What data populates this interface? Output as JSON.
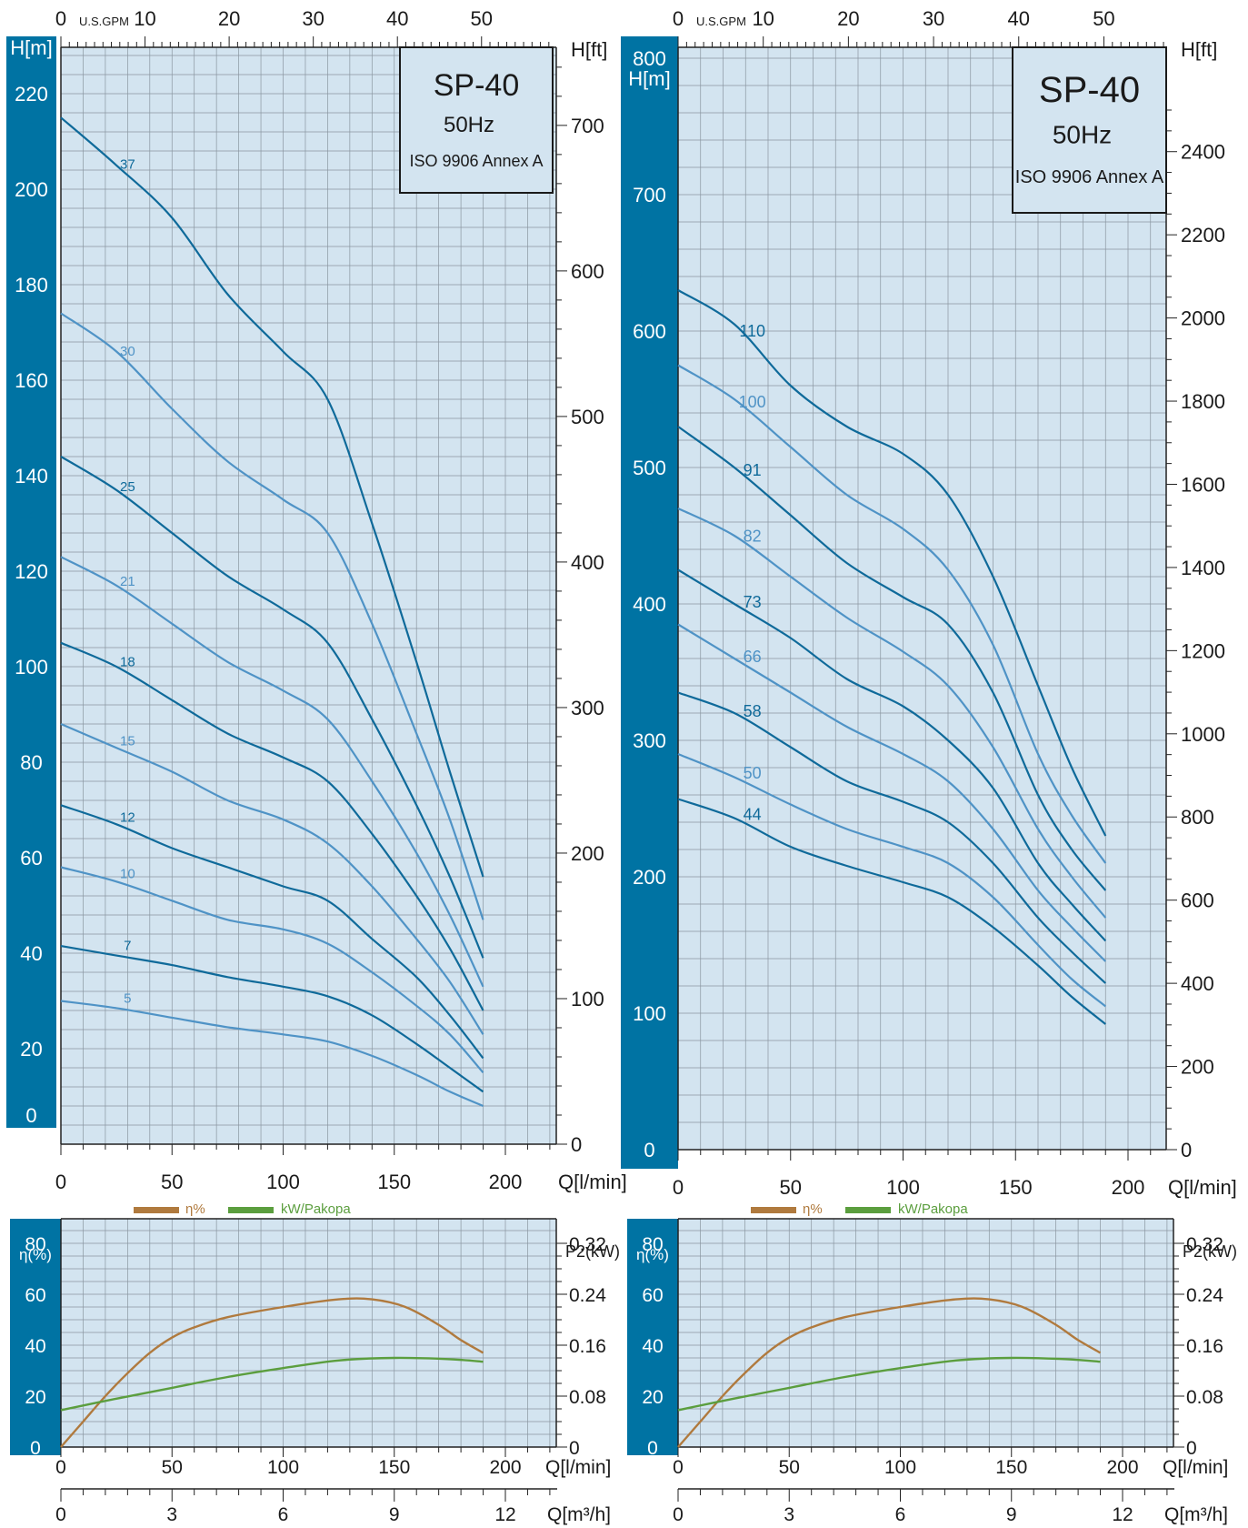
{
  "charts": [
    {
      "model": "SP-40",
      "frequency": "50Hz",
      "standard": "ISO 9906 Annex A",
      "head": {
        "gpm_unit": "U.S.GPM",
        "gpm_ticks": [
          "0",
          "10",
          "20",
          "30",
          "40",
          "50"
        ],
        "y_unit_m": "H[m]",
        "y_unit_ft": "H[ft]",
        "y_ticks_m": [
          "0",
          "20",
          "40",
          "60",
          "80",
          "100",
          "120",
          "140",
          "160",
          "180",
          "200",
          "220"
        ],
        "y_ticks_ft": [
          "0",
          "100",
          "200",
          "300",
          "400",
          "500",
          "600",
          "700"
        ],
        "x_unit": "Q[l/min]",
        "x_ticks": [
          "0",
          "50",
          "100",
          "150",
          "200"
        ]
      },
      "efficiency": {
        "legend_eta": "η%",
        "legend_kw": "kW/Pakopa",
        "y_unit_left": "η(%)",
        "y_unit_right": "P2(kW)",
        "y_ticks_left": [
          "0",
          "20",
          "40",
          "60",
          "80"
        ],
        "y_ticks_right": [
          "0",
          "0.08",
          "0.16",
          "0.24",
          "0.32"
        ],
        "x_unit": "Q[l/min]",
        "x_ticks": [
          "0",
          "50",
          "100",
          "150",
          "200"
        ],
        "x2_unit": "Q[m³/h]",
        "x2_ticks": [
          "0",
          "3",
          "6",
          "9",
          "12"
        ]
      }
    },
    {
      "model": "SP-40",
      "frequency": "50Hz",
      "standard": "ISO 9906 Annex A",
      "head": {
        "gpm_unit": "U.S.GPM",
        "gpm_ticks": [
          "0",
          "10",
          "20",
          "30",
          "40",
          "50"
        ],
        "y_unit_m": "H[m]",
        "y_unit_ft": "H[ft]",
        "y_ticks_m": [
          "0",
          "100",
          "200",
          "300",
          "400",
          "500",
          "600",
          "700",
          "800"
        ],
        "y_ticks_ft": [
          "0",
          "200",
          "400",
          "600",
          "800",
          "1000",
          "1200",
          "1400",
          "1600",
          "1800",
          "2000",
          "2200",
          "2400"
        ],
        "x_unit": "Q[l/min]",
        "x_ticks": [
          "0",
          "50",
          "100",
          "150",
          "200"
        ]
      },
      "efficiency": {
        "legend_eta": "η%",
        "legend_kw": "kW/Pakopa",
        "y_unit_left": "η(%)",
        "y_unit_right": "P2(kW)",
        "y_ticks_left": [
          "0",
          "20",
          "40",
          "60",
          "80"
        ],
        "y_ticks_right": [
          "0",
          "0.08",
          "0.16",
          "0.24",
          "0.32"
        ],
        "x_unit": "Q[l/min]",
        "x_ticks": [
          "0",
          "50",
          "100",
          "150",
          "200"
        ],
        "x2_unit": "Q[m³/h]",
        "x2_ticks": [
          "0",
          "3",
          "6",
          "9",
          "12"
        ]
      }
    }
  ],
  "colors": {
    "plot_bg": "#d3e4f0",
    "grid": "#8a96a0",
    "axis_band": "#0073a3",
    "curve_dark": "#0f6a9a",
    "curve_light": "#4f93c6",
    "eta_curve": "#b07a3e",
    "kw_curve": "#5b9e3e"
  },
  "chart_data": [
    {
      "type": "line",
      "title": "SP-40",
      "subtitle": "50Hz",
      "xlabel": "Q[l/min]",
      "ylabel": "H[m]",
      "xlim": [
        0,
        250
      ],
      "ylim": [
        0,
        230
      ],
      "x": [
        0,
        25,
        50,
        75,
        100,
        120,
        140,
        160,
        175,
        190
      ],
      "series": [
        {
          "name": "37",
          "values": [
            215,
            205,
            194,
            178,
            166,
            156,
            130,
            101,
            78,
            56
          ]
        },
        {
          "name": "30",
          "values": [
            174,
            166,
            154,
            143,
            135,
            128,
            109,
            86,
            68,
            47
          ]
        },
        {
          "name": "25",
          "values": [
            144,
            137,
            128,
            119,
            112,
            105,
            89,
            71,
            56,
            39
          ]
        },
        {
          "name": "21",
          "values": [
            123,
            117,
            109,
            101,
            95,
            89,
            76,
            61,
            48,
            33
          ]
        },
        {
          "name": "18",
          "values": [
            105,
            100,
            93,
            86,
            81,
            76,
            65,
            52,
            41,
            28
          ]
        },
        {
          "name": "15",
          "values": [
            88,
            83,
            78,
            72,
            68,
            63,
            54,
            43,
            34,
            23
          ]
        },
        {
          "name": "12",
          "values": [
            71,
            67,
            62,
            58,
            54,
            51,
            43,
            35,
            27,
            18
          ]
        },
        {
          "name": "10",
          "values": [
            58,
            55,
            51,
            47,
            45,
            42,
            36,
            29,
            23,
            15
          ]
        },
        {
          "name": "7",
          "values": [
            41.5,
            39.5,
            37.5,
            35,
            33,
            31,
            27,
            21,
            16,
            11
          ]
        },
        {
          "name": "5",
          "values": [
            30,
            28.5,
            26.5,
            24.5,
            23,
            21.5,
            18.5,
            14.5,
            11,
            8
          ]
        }
      ]
    },
    {
      "type": "line",
      "xlabel": "Q[l/min]",
      "ylabel": "η(%)",
      "xlim": [
        0,
        220
      ],
      "ylim": [
        0,
        80
      ],
      "y2lim": [
        0,
        0.32
      ],
      "x": [
        0,
        10,
        20,
        30,
        40,
        50,
        60,
        75,
        100,
        125,
        140,
        155,
        170,
        180,
        190
      ],
      "series": [
        {
          "name": "η%",
          "values": [
            0,
            10,
            20,
            29,
            37,
            43,
            47,
            51,
            55,
            58,
            58,
            55,
            48,
            42,
            37
          ]
        },
        {
          "name": "kW/Pakopa",
          "axis": "P2(kW)",
          "x": [
            0,
            25,
            50,
            75,
            100,
            125,
            150,
            175,
            190
          ],
          "values": [
            0.058,
            0.076,
            0.093,
            0.11,
            0.124,
            0.136,
            0.14,
            0.138,
            0.134
          ]
        }
      ]
    },
    {
      "type": "line",
      "title": "SP-40",
      "subtitle": "50Hz",
      "xlabel": "Q[l/min]",
      "ylabel": "H[m]",
      "xlim": [
        0,
        220
      ],
      "ylim": [
        0,
        805
      ],
      "x": [
        0,
        25,
        50,
        75,
        100,
        120,
        140,
        160,
        175,
        190
      ],
      "series": [
        {
          "name": "110",
          "values": [
            630,
            605,
            560,
            530,
            510,
            480,
            420,
            340,
            280,
            230
          ]
        },
        {
          "name": "100",
          "values": [
            575,
            550,
            515,
            480,
            455,
            425,
            370,
            290,
            245,
            210
          ]
        },
        {
          "name": "91",
          "values": [
            530,
            500,
            465,
            430,
            405,
            385,
            335,
            260,
            220,
            190
          ]
        },
        {
          "name": "82",
          "values": [
            470,
            450,
            420,
            390,
            365,
            340,
            295,
            235,
            200,
            170
          ]
        },
        {
          "name": "73",
          "values": [
            425,
            400,
            375,
            345,
            325,
            300,
            265,
            210,
            180,
            153
          ]
        },
        {
          "name": "66",
          "values": [
            385,
            360,
            335,
            310,
            290,
            270,
            235,
            190,
            163,
            138
          ]
        },
        {
          "name": "58",
          "values": [
            335,
            320,
            295,
            270,
            255,
            240,
            210,
            170,
            145,
            122
          ]
        },
        {
          "name": "50",
          "values": [
            290,
            273,
            253,
            235,
            222,
            210,
            185,
            150,
            125,
            105
          ]
        },
        {
          "name": "44",
          "values": [
            257,
            243,
            222,
            208,
            196,
            185,
            163,
            135,
            112,
            92
          ]
        }
      ]
    },
    {
      "type": "line",
      "xlabel": "Q[l/min]",
      "ylabel": "η(%)",
      "xlim": [
        0,
        220
      ],
      "ylim": [
        0,
        80
      ],
      "y2lim": [
        0,
        0.32
      ],
      "x": [
        0,
        10,
        20,
        30,
        40,
        50,
        60,
        75,
        100,
        125,
        140,
        155,
        170,
        180,
        190
      ],
      "series": [
        {
          "name": "η%",
          "values": [
            0,
            10,
            20,
            29,
            37,
            43,
            47,
            51,
            55,
            58,
            58,
            55,
            48,
            42,
            37
          ]
        },
        {
          "name": "kW/Pakopa",
          "axis": "P2(kW)",
          "x": [
            0,
            25,
            50,
            75,
            100,
            125,
            150,
            175,
            190
          ],
          "values": [
            0.058,
            0.076,
            0.093,
            0.11,
            0.124,
            0.136,
            0.14,
            0.138,
            0.134
          ]
        }
      ]
    }
  ]
}
